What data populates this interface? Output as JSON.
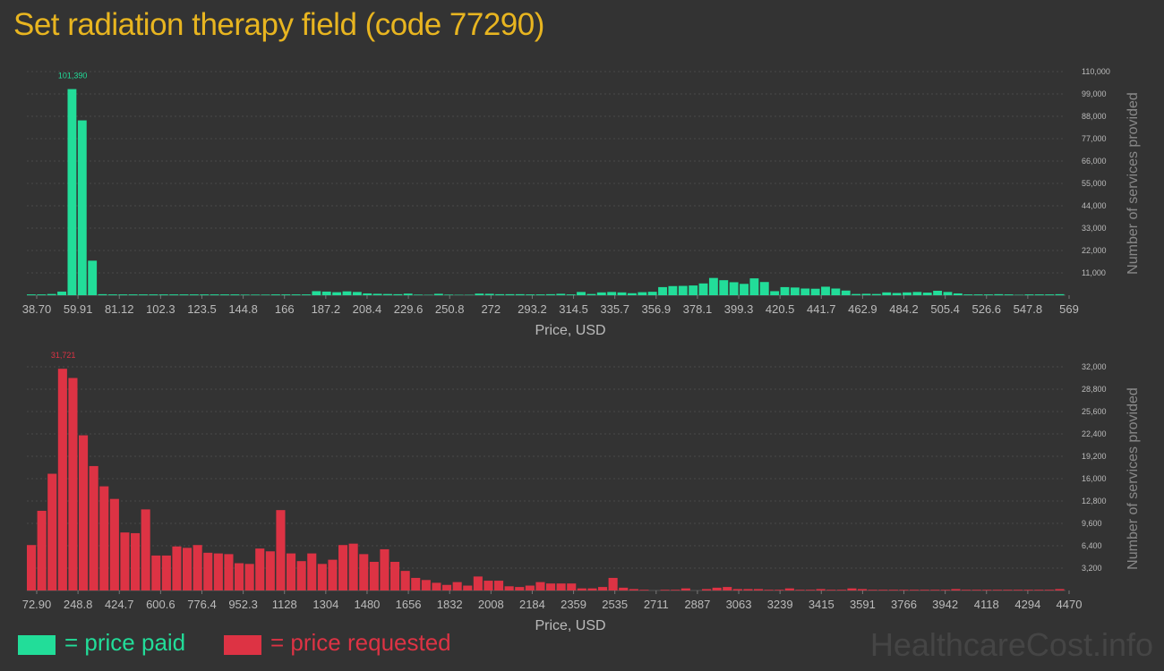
{
  "title": "Set radiation therapy field (code 77290)",
  "colors": {
    "paid": "#22dd99",
    "requested": "#dd3344",
    "title": "#e8b520",
    "background": "#333333"
  },
  "legend": {
    "paid_label": "= price paid",
    "requested_label": "= price requested"
  },
  "watermark": "HealthcareCost.info",
  "chart_data": [
    {
      "type": "bar",
      "series": [
        {
          "name": "price paid"
        }
      ],
      "xlabel": "Price, USD",
      "ylabel": "Number of services provided",
      "ylim": [
        0,
        110000
      ],
      "yticks": [
        "11,000",
        "22,000",
        "33,000",
        "44,000",
        "55,000",
        "66,000",
        "77,000",
        "88,000",
        "99,000",
        "110,000"
      ],
      "xticks": [
        "38.70",
        "59.91",
        "81.12",
        "102.3",
        "123.5",
        "144.8",
        "166",
        "187.2",
        "208.4",
        "229.6",
        "250.8",
        "272",
        "293.2",
        "314.5",
        "335.7",
        "356.9",
        "378.1",
        "399.3",
        "420.5",
        "441.7",
        "462.9",
        "484.2",
        "505.4",
        "526.6",
        "547.8",
        "569"
      ],
      "peak_label": "101,390",
      "peak_index": 4,
      "values": [
        400,
        400,
        600,
        1800,
        101390,
        86000,
        17000,
        500,
        400,
        400,
        400,
        400,
        400,
        400,
        400,
        400,
        400,
        400,
        400,
        400,
        400,
        300,
        300,
        300,
        400,
        400,
        400,
        400,
        2000,
        1800,
        1500,
        1900,
        1600,
        900,
        700,
        600,
        500,
        800,
        300,
        200,
        700,
        300,
        200,
        200,
        800,
        700,
        500,
        500,
        500,
        400,
        400,
        500,
        700,
        400,
        1600,
        600,
        1400,
        1600,
        1400,
        1000,
        1500,
        1700,
        4000,
        4500,
        4600,
        4800,
        5800,
        8500,
        7400,
        6400,
        5600,
        8300,
        6500,
        2000,
        4000,
        3800,
        3300,
        3200,
        4200,
        3300,
        2300,
        600,
        700,
        600,
        1400,
        1100,
        1400,
        1600,
        1300,
        2200,
        1600,
        900,
        400,
        400,
        400,
        500,
        400,
        200,
        400,
        400,
        400,
        500
      ]
    },
    {
      "type": "bar",
      "series": [
        {
          "name": "price requested"
        }
      ],
      "xlabel": "Price, USD",
      "ylabel": "Number of services provided",
      "ylim": [
        0,
        32000
      ],
      "yticks": [
        "3,200",
        "6,400",
        "9,600",
        "12,800",
        "16,000",
        "19,200",
        "22,400",
        "25,600",
        "28,800",
        "32,000"
      ],
      "xticks": [
        "72.90",
        "248.8",
        "424.7",
        "600.6",
        "776.4",
        "952.3",
        "1128",
        "1304",
        "1480",
        "1656",
        "1832",
        "2008",
        "2184",
        "2359",
        "2535",
        "2711",
        "2887",
        "3063",
        "3239",
        "3415",
        "3591",
        "3766",
        "3942",
        "4118",
        "4294",
        "4470"
      ],
      "peak_label": "31,721",
      "peak_index": 3,
      "values": [
        6500,
        11400,
        16700,
        31721,
        30400,
        22200,
        17800,
        14900,
        13100,
        8300,
        8200,
        11600,
        5000,
        5000,
        6300,
        6100,
        6500,
        5400,
        5300,
        5200,
        3900,
        3800,
        6000,
        5600,
        11500,
        5300,
        4200,
        5300,
        3800,
        4400,
        6500,
        6700,
        5200,
        4100,
        5900,
        4100,
        2800,
        1800,
        1500,
        1100,
        800,
        1200,
        700,
        2000,
        1400,
        1400,
        600,
        500,
        700,
        1200,
        1000,
        1000,
        1000,
        300,
        300,
        500,
        1800,
        400,
        200,
        100,
        0,
        100,
        100,
        300,
        0,
        200,
        400,
        500,
        200,
        200,
        200,
        100,
        100,
        300,
        100,
        100,
        200,
        100,
        100,
        300,
        200,
        100,
        100,
        100,
        100,
        100,
        100,
        100,
        100,
        200,
        100,
        100,
        100,
        100,
        100,
        100,
        100,
        100,
        100,
        200
      ]
    }
  ]
}
